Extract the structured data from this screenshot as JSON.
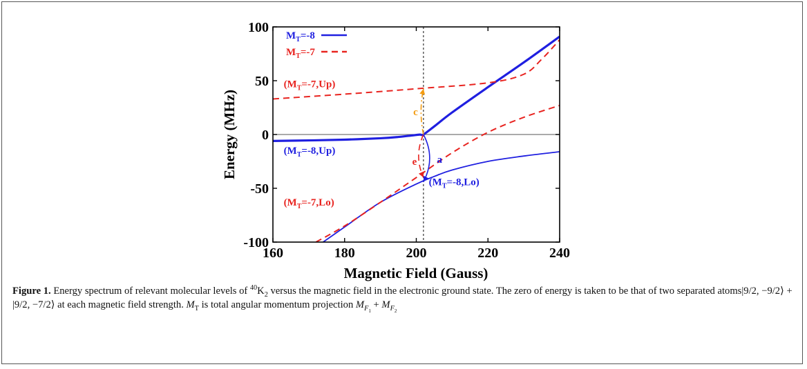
{
  "chart_data": {
    "type": "line",
    "xlabel": "Magnetic Field (Gauss)",
    "ylabel": "Energy (MHz)",
    "xlim": [
      160,
      240
    ],
    "ylim": [
      -100,
      100
    ],
    "xticks": [
      "160",
      "180",
      "200",
      "220",
      "240"
    ],
    "yticks": [
      "100",
      "50",
      "0",
      "-50",
      "-100"
    ],
    "marker_x": 202,
    "zero_line": true,
    "legend": [
      {
        "label_main": "M",
        "label_sub": "T",
        "label_rest": "=-8",
        "color": "#1f1fe0",
        "dash": "solid"
      },
      {
        "label_main": "M",
        "label_sub": "T",
        "label_rest": "=-7",
        "color": "#e8231f",
        "dash": "dashed"
      }
    ],
    "series": [
      {
        "key": "mt8_up",
        "color": "#1f1fe0",
        "dash": "solid",
        "width": 3.2,
        "x": [
          160,
          170,
          180,
          190,
          195,
          199,
          201,
          202,
          205,
          210,
          220,
          230,
          240
        ],
        "y": [
          -6,
          -5.5,
          -4.8,
          -3.5,
          -2.3,
          -0.8,
          -0.1,
          0,
          7.5,
          20.5,
          44,
          67,
          91
        ]
      },
      {
        "key": "mt8_lo",
        "color": "#1f1fe0",
        "dash": "solid",
        "width": 1.8,
        "x": [
          174,
          180,
          190,
          200,
          205,
          210,
          220,
          230,
          240
        ],
        "y": [
          -100,
          -86,
          -63,
          -46,
          -39,
          -33,
          -25,
          -20,
          -16
        ]
      },
      {
        "key": "mt7_up",
        "color": "#e8231f",
        "dash": "dashed",
        "width": 2,
        "x": [
          160,
          180,
          200,
          220,
          230,
          235,
          240
        ],
        "y": [
          33,
          37.5,
          42.5,
          48,
          56,
          70,
          88
        ]
      },
      {
        "key": "mt7_lo",
        "color": "#e8231f",
        "dash": "dashed",
        "width": 2,
        "x": [
          172,
          180,
          190,
          200,
          210,
          220,
          230,
          240
        ],
        "y": [
          -100,
          -85,
          -63,
          -40,
          -17,
          2,
          16,
          27
        ]
      }
    ],
    "transitions": [
      {
        "label": "c",
        "color": "#f39c12",
        "dash": "dashdot",
        "from": [
          202,
          0
        ],
        "to": [
          202,
          42.5
        ]
      },
      {
        "label": "e",
        "color": "#e8231f",
        "dash": "dashed",
        "from": [
          202,
          0
        ],
        "to": [
          202,
          -40
        ]
      },
      {
        "label": "a",
        "color": "#1f1fe0",
        "dash": "solid",
        "from": [
          202,
          0
        ],
        "to": [
          202,
          -44
        ]
      }
    ],
    "annotations": [
      {
        "main": "(M",
        "sub": "T",
        "rest": "=-7,Up)",
        "color": "#e8231f",
        "x": 163,
        "y": 44
      },
      {
        "main": "(M",
        "sub": "T",
        "rest": "=-8,Up)",
        "color": "#1f1fe0",
        "x": 163,
        "y": -18
      },
      {
        "main": "(M",
        "sub": "T",
        "rest": "=-8,Lo)",
        "color": "#1f1fe0",
        "x": 203.5,
        "y": -47
      },
      {
        "main": "(M",
        "sub": "T",
        "rest": "=-7,Lo)",
        "color": "#e8231f",
        "x": 163,
        "y": -66
      }
    ],
    "transition_labels": [
      {
        "text": "c",
        "color": "#f39c12",
        "x": 199.8,
        "y": 21
      },
      {
        "text": "e",
        "color": "#e8231f",
        "x": 199.5,
        "y": -25
      },
      {
        "text": "a",
        "color": "#1f1fe0",
        "x": 206.5,
        "y": -23
      }
    ]
  },
  "caption": {
    "label": "Figure 1.",
    "part1": " Energy spectrum of relevant molecular levels of ",
    "iso": "40",
    "mol": "K",
    "mol_sub": "2",
    "part2": " versus the magnetic field in the electronic ground state. The zero of energy is taken to be that of two separated atoms|9/2, −9/2⟩ + |9/2, −7/2⟩ at each magnetic field strength. ",
    "mt_main": "M",
    "mt_sub": "T",
    "part3": " is total angular momentum projection ",
    "mf1_main": "M",
    "mf1_sub": "F",
    "mf1_subsub": "1",
    "plus": " + ",
    "mf2_main": "M",
    "mf2_sub": "F",
    "mf2_subsub": "2"
  }
}
